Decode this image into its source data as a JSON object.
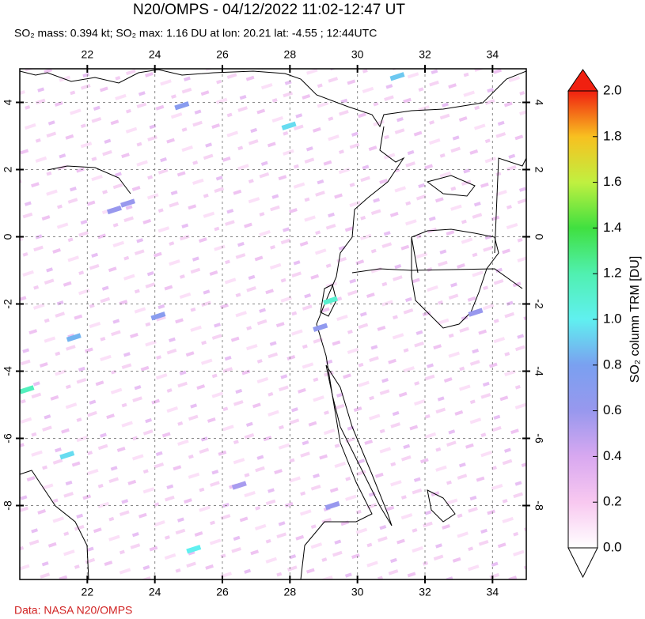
{
  "chart_data": {
    "type": "map",
    "title": "N20/OMPS - 04/12/2022 11:02-12:47 UT",
    "subtitle": "SO₂ mass: 0.394 kt; SO₂ max: 1.16 DU at lon: 20.21 lat: -4.55 ; 12:44UTC",
    "source": "Data: NASA N20/OMPS",
    "xlim": [
      20,
      35
    ],
    "ylim": [
      -10.2,
      5
    ],
    "xticks": [
      22,
      24,
      26,
      28,
      30,
      32,
      34
    ],
    "yticks": [
      -8,
      -6,
      -4,
      -2,
      0,
      2,
      4
    ],
    "grid": true,
    "colorbar": {
      "label": "SO₂ column TRM [DU]",
      "lim": [
        0,
        2
      ],
      "ticks": [
        {
          "value": 0,
          "label": "0.0"
        },
        {
          "value": 0.2,
          "label": "0.2"
        },
        {
          "value": 0.4,
          "label": "0.4"
        },
        {
          "value": 0.6,
          "label": "0.6"
        },
        {
          "value": 0.8,
          "label": "0.8"
        },
        {
          "value": 1,
          "label": "1.0"
        },
        {
          "value": 1.2,
          "label": "1.2"
        },
        {
          "value": 1.4,
          "label": "1.4"
        },
        {
          "value": 1.6,
          "label": "1.6"
        },
        {
          "value": 1.8,
          "label": "1.8"
        },
        {
          "value": 2,
          "label": "2.0"
        }
      ],
      "colors": [
        "#ffffff",
        "#f8c8f0",
        "#d8a8f0",
        "#9898ee",
        "#7aa0f0",
        "#60f0f0",
        "#50f0b0",
        "#40e040",
        "#c0f040",
        "#f8c020",
        "#f02010"
      ]
    },
    "pixels": {
      "lon": [
        20.21,
        21.4,
        25.15,
        29.2,
        27.97,
        31.18,
        24.1,
        29.26,
        22.8,
        24.8,
        33.5,
        21.6,
        28.9,
        23.2,
        26.5
      ],
      "lat": [
        -4.55,
        -6.5,
        -9.3,
        -1.9,
        3.3,
        4.77,
        -2.36,
        -8.0,
        0.8,
        3.9,
        -2.25,
        -3.0,
        -2.7,
        1.0,
        -7.4
      ],
      "values": [
        1.16,
        0.95,
        1.0,
        1.1,
        0.95,
        0.9,
        0.7,
        0.6,
        0.6,
        0.7,
        0.6,
        0.85,
        0.65,
        0.6,
        0.55
      ]
    }
  }
}
